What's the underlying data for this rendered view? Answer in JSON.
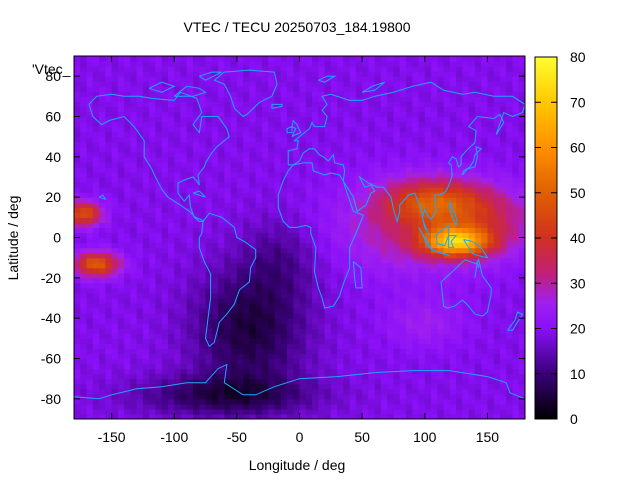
{
  "chart_data": {
    "type": "heatmap",
    "title": "VTEC / TECU 20250703_184.19800",
    "key_text": "'Vtec_",
    "xlabel": "Longitude / deg",
    "ylabel": "Latitude / deg",
    "xlim": [
      -180,
      180
    ],
    "ylim": [
      -90,
      90
    ],
    "xticks": [
      -150,
      -100,
      -50,
      0,
      50,
      100,
      150
    ],
    "yticks": [
      -80,
      -60,
      -40,
      -20,
      0,
      20,
      40,
      60,
      80
    ],
    "colorbar": {
      "range": [
        0,
        80
      ],
      "ticks": [
        0,
        10,
        20,
        30,
        40,
        50,
        60,
        70,
        80
      ],
      "palette": [
        "#000000",
        "#3a0078",
        "#7a00d8",
        "#9a1fff",
        "#c0207a",
        "#e04010",
        "#ff7000",
        "#ffc000",
        "#ffff40"
      ]
    },
    "background_vtec": 19,
    "features": [
      {
        "region": "equatorial anomaly Asia-Pacific",
        "lon": 125,
        "lat": 0,
        "peak_vtec": 72
      },
      {
        "region": "Asia northern crest",
        "lon": 110,
        "lat": 20,
        "peak_vtec": 52
      },
      {
        "region": "eastern Pacific north",
        "lon": -165,
        "lat": 12,
        "peak_vtec": 48
      },
      {
        "region": "eastern Pacific south",
        "lon": -160,
        "lat": -12,
        "peak_vtec": 52
      },
      {
        "region": "South Atlantic low",
        "lon": -40,
        "lat": -40,
        "min_vtec": 3
      },
      {
        "region": "Antarctic low",
        "lon": -60,
        "lat": -75,
        "min_vtec": 2
      }
    ]
  }
}
